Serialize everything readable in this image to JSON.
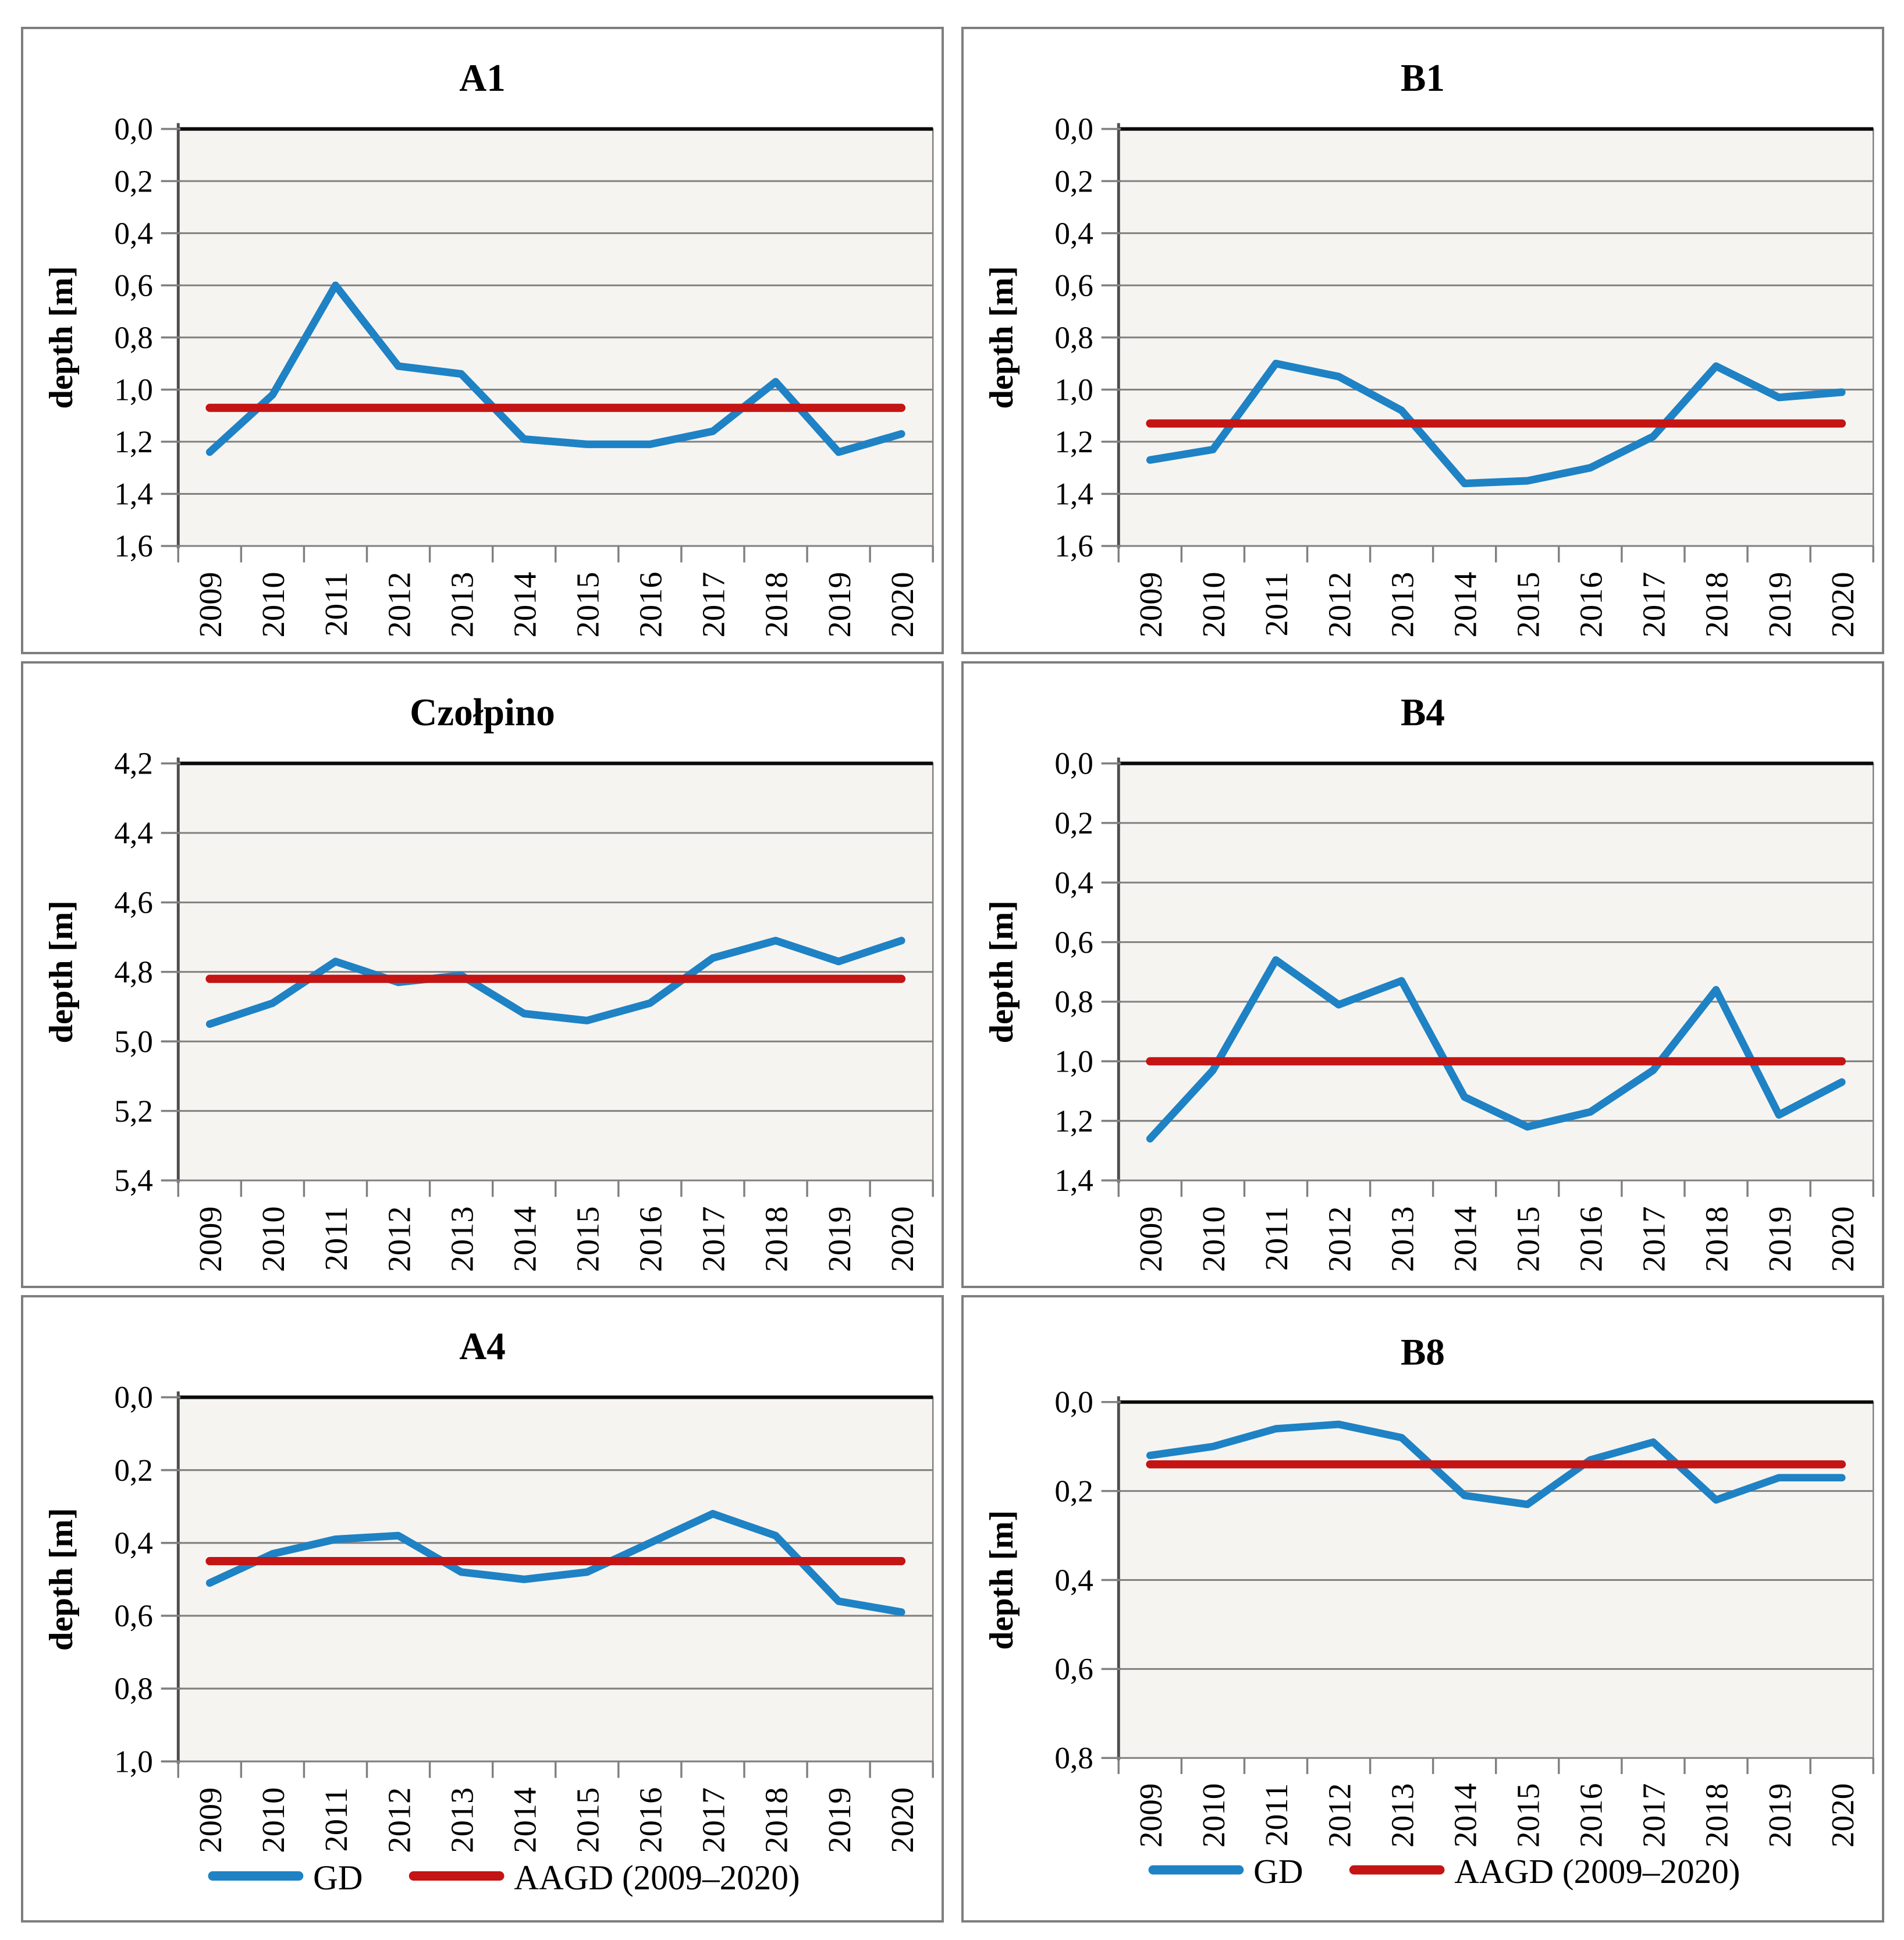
{
  "years": [
    "2009",
    "2010",
    "2011",
    "2012",
    "2013",
    "2014",
    "2015",
    "2016",
    "2017",
    "2018",
    "2019",
    "2020"
  ],
  "legend": {
    "gd_label": "GD",
    "aagd_label": "AAGD (2009–2020)"
  },
  "colors": {
    "gd_blue": "#1E82C5",
    "aagd_red": "#C41414",
    "grid_gray": "#808080",
    "axis_dark": "#4D4D4D",
    "top_axis_black": "#0A0A0A",
    "plot_background": "#F6F4F0",
    "panel_border": "#7E7E7E",
    "text_black": "#000000"
  },
  "chart_data": [
    {
      "type": "line",
      "title": "A1",
      "ylabel": "depth [m]",
      "ylim": [
        0.0,
        1.6
      ],
      "ytick_step": 0.2,
      "grid": true,
      "legend_visible": false,
      "x_categories_ref": "years",
      "series": [
        {
          "name": "GD",
          "values": [
            1.24,
            1.02,
            0.6,
            0.91,
            0.94,
            1.19,
            1.21,
            1.21,
            1.16,
            0.97,
            1.24,
            1.17
          ]
        },
        {
          "name": "AAGD (2009–2020)",
          "constant_value": 1.07
        }
      ]
    },
    {
      "type": "line",
      "title": "B1",
      "ylabel": "depth [m]",
      "ylim": [
        0.0,
        1.6
      ],
      "ytick_step": 0.2,
      "grid": true,
      "legend_visible": false,
      "x_categories_ref": "years",
      "series": [
        {
          "name": "GD",
          "values": [
            1.27,
            1.23,
            0.9,
            0.95,
            1.08,
            1.36,
            1.35,
            1.3,
            1.18,
            0.91,
            1.03,
            1.01
          ]
        },
        {
          "name": "AAGD (2009–2020)",
          "constant_value": 1.13
        }
      ]
    },
    {
      "type": "line",
      "title": "Czołpino",
      "ylabel": "depth [m]",
      "ylim": [
        4.2,
        5.4
      ],
      "ytick_step": 0.2,
      "grid": true,
      "legend_visible": false,
      "x_categories_ref": "years",
      "series": [
        {
          "name": "GD",
          "values": [
            4.95,
            4.89,
            4.77,
            4.83,
            4.81,
            4.92,
            4.94,
            4.89,
            4.76,
            4.71,
            4.77,
            4.71
          ]
        },
        {
          "name": "AAGD (2009–2020)",
          "constant_value": 4.82
        }
      ]
    },
    {
      "type": "line",
      "title": "B4",
      "ylabel": "depth [m]",
      "ylim": [
        0.0,
        1.4
      ],
      "ytick_step": 0.2,
      "grid": true,
      "legend_visible": false,
      "x_categories_ref": "years",
      "series": [
        {
          "name": "GD",
          "values": [
            1.26,
            1.03,
            0.66,
            0.81,
            0.73,
            1.12,
            1.22,
            1.17,
            1.03,
            0.76,
            1.18,
            1.07
          ]
        },
        {
          "name": "AAGD (2009–2020)",
          "constant_value": 1.0
        }
      ]
    },
    {
      "type": "line",
      "title": "A4",
      "ylabel": "depth [m]",
      "ylim": [
        0.0,
        1.0
      ],
      "ytick_step": 0.2,
      "grid": true,
      "legend_visible": true,
      "x_categories_ref": "years",
      "series": [
        {
          "name": "GD",
          "values": [
            0.51,
            0.43,
            0.39,
            0.38,
            0.48,
            0.5,
            0.48,
            0.4,
            0.32,
            0.38,
            0.56,
            0.59
          ]
        },
        {
          "name": "AAGD (2009–2020)",
          "constant_value": 0.45
        }
      ]
    },
    {
      "type": "line",
      "title": "B8",
      "ylabel": "depth [m]",
      "ylim": [
        0.0,
        0.8
      ],
      "ytick_step": 0.2,
      "grid": true,
      "legend_visible": true,
      "x_categories_ref": "years",
      "series": [
        {
          "name": "GD",
          "values": [
            0.12,
            0.1,
            0.06,
            0.05,
            0.08,
            0.21,
            0.23,
            0.13,
            0.09,
            0.22,
            0.17,
            0.17
          ]
        },
        {
          "name": "AAGD (2009–2020)",
          "constant_value": 0.14
        }
      ]
    }
  ]
}
